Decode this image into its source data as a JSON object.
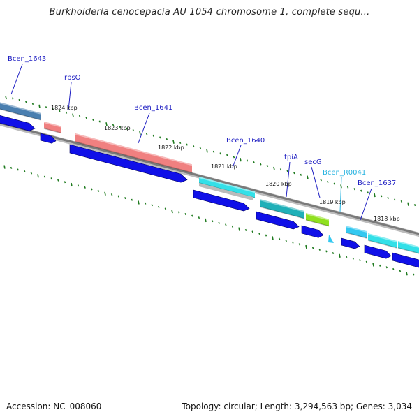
{
  "title": "Burkholderia cenocepacia AU 1054 chromosome 1, complete sequ...",
  "footer": {
    "accession": "Accession: NC_008060",
    "topology": "Topology: circular; Length: 3,294,563 bp; Genes: 3,034"
  },
  "kbp_ticks": [
    "1824 kbp",
    "1823 kbp",
    "1822 kbp",
    "1821 kbp",
    "1820 kbp",
    "1819 kbp",
    "1818 kbp"
  ],
  "genes": [
    {
      "label": "Bcen_1643",
      "color": "#4a7fb0",
      "label_color": "#1d1dc2"
    },
    {
      "label": "rpsO",
      "color": "#f08080",
      "label_color": "#1d1dc2"
    },
    {
      "label": "Bcen_1641",
      "color": "#f08080",
      "label_color": "#1d1dc2"
    },
    {
      "label": "Bcen_1640",
      "color": "#33e0e8",
      "label_color": "#1d1dc2"
    },
    {
      "label": "tpiA",
      "color": "#20b0b8",
      "label_color": "#1d1dc2"
    },
    {
      "label": "secG",
      "color": "#90e020",
      "label_color": "#1d1dc2"
    },
    {
      "label": "Bcen_R0041",
      "color": "#33c8f0",
      "label_color": "#26b3e0"
    },
    {
      "label": "Bcen_1637",
      "color": "#33e0e8",
      "label_color": "#1d1dc2"
    },
    {
      "label": "",
      "color": "#33e0e8",
      "label_color": "#1d1dc2"
    }
  ],
  "colors": {
    "cds_arrow": "#1010e8",
    "backbone": "#7a7a7a",
    "tick": "#1e7a1e"
  }
}
